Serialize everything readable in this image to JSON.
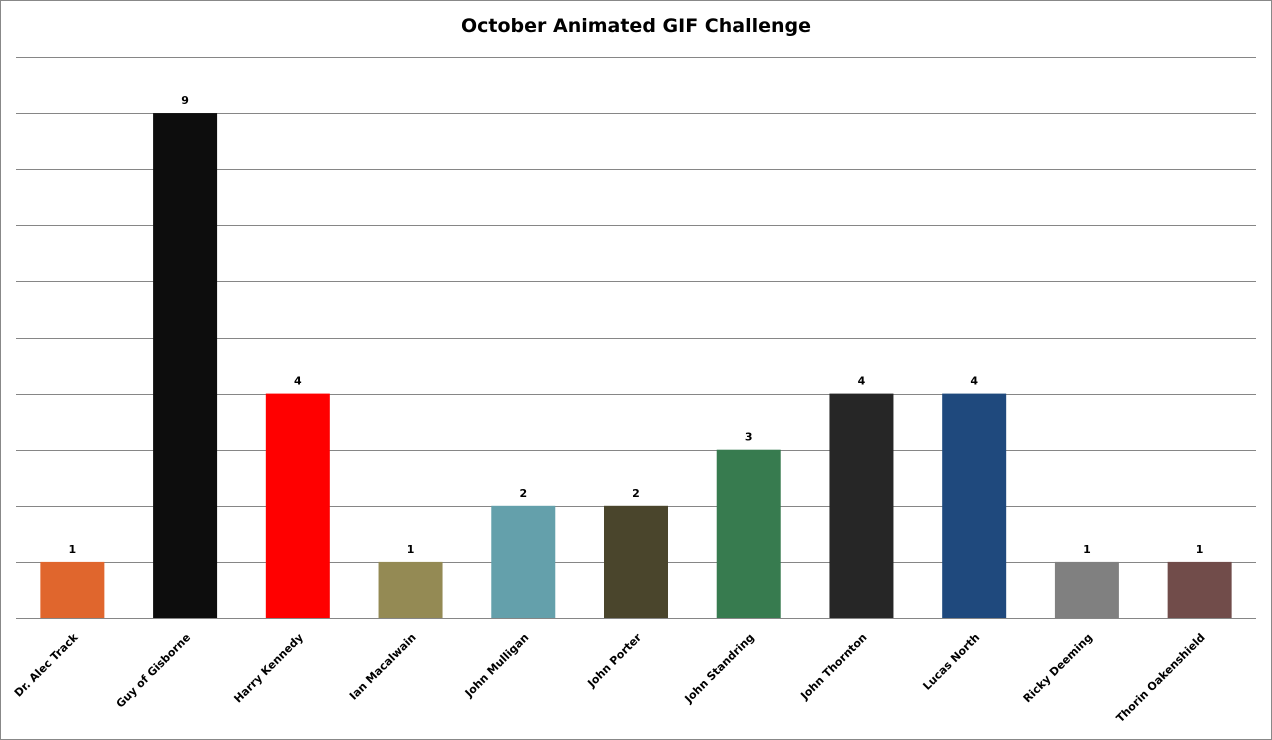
{
  "chart_data": {
    "type": "bar",
    "title": "October Animated GIF Challenge",
    "xlabel": "",
    "ylabel": "",
    "ylim": [
      0,
      10
    ],
    "grid": true,
    "legend": "none",
    "categories": [
      "Dr. Alec Track",
      "Guy of Gisborne",
      "Harry Kennedy",
      "Ian Macalwain",
      "John Mulligan",
      "John Porter",
      "John Standring",
      "John Thornton",
      "Lucas North",
      "Ricky Deeming",
      "Thorin Oakenshield"
    ],
    "values": [
      1,
      9,
      4,
      1,
      2,
      2,
      3,
      4,
      4,
      1,
      1
    ],
    "colors": [
      "#e0662d",
      "#0d0d0d",
      "#ff0000",
      "#948a54",
      "#64a0ab",
      "#4a452c",
      "#377b4f",
      "#262626",
      "#1f497d",
      "#808080",
      "#714c4a"
    ],
    "gridline_color": "#868686"
  }
}
